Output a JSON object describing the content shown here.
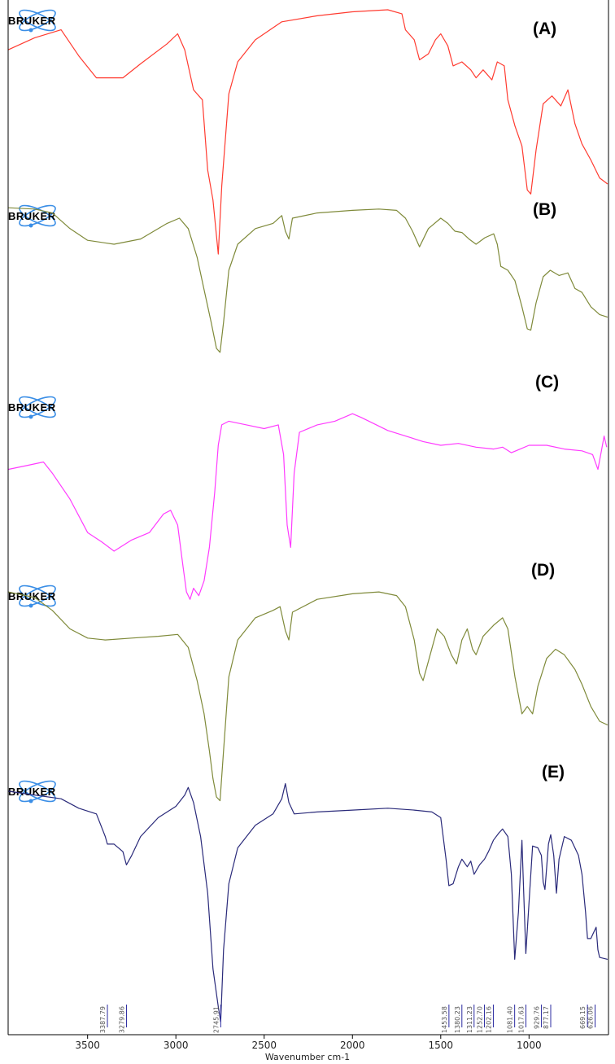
{
  "logo_text": "BRUKER",
  "chart_data": {
    "type": "line",
    "title": "",
    "xlabel": "Wavenumber cm-1",
    "ylabel": "",
    "x_reversed": true,
    "xlim": [
      3950,
      550
    ],
    "x_ticks": [
      3500,
      3000,
      2500,
      2000,
      1500,
      1000
    ],
    "grid": false,
    "series": [
      {
        "name": "(A)",
        "color": "#ff3b30",
        "points": [
          [
            3950,
            0.8
          ],
          [
            3800,
            0.86
          ],
          [
            3650,
            0.9
          ],
          [
            3550,
            0.77
          ],
          [
            3450,
            0.66
          ],
          [
            3300,
            0.66
          ],
          [
            3200,
            0.73
          ],
          [
            3050,
            0.83
          ],
          [
            2990,
            0.88
          ],
          [
            2950,
            0.8
          ],
          [
            2900,
            0.6
          ],
          [
            2850,
            0.55
          ],
          [
            2820,
            0.2
          ],
          [
            2790,
            0.05
          ],
          [
            2760,
            -0.22
          ],
          [
            2740,
            0.12
          ],
          [
            2700,
            0.58
          ],
          [
            2650,
            0.74
          ],
          [
            2550,
            0.85
          ],
          [
            2400,
            0.94
          ],
          [
            2200,
            0.97
          ],
          [
            2000,
            0.99
          ],
          [
            1800,
            1.0
          ],
          [
            1720,
            0.98
          ],
          [
            1700,
            0.9
          ],
          [
            1650,
            0.85
          ],
          [
            1620,
            0.75
          ],
          [
            1570,
            0.78
          ],
          [
            1530,
            0.85
          ],
          [
            1500,
            0.88
          ],
          [
            1460,
            0.82
          ],
          [
            1430,
            0.72
          ],
          [
            1380,
            0.74
          ],
          [
            1330,
            0.7
          ],
          [
            1300,
            0.66
          ],
          [
            1260,
            0.7
          ],
          [
            1210,
            0.65
          ],
          [
            1180,
            0.74
          ],
          [
            1140,
            0.72
          ],
          [
            1120,
            0.55
          ],
          [
            1080,
            0.42
          ],
          [
            1040,
            0.32
          ],
          [
            1010,
            0.1
          ],
          [
            990,
            0.08
          ],
          [
            960,
            0.3
          ],
          [
            920,
            0.53
          ],
          [
            870,
            0.57
          ],
          [
            820,
            0.52
          ],
          [
            780,
            0.6
          ],
          [
            740,
            0.43
          ],
          [
            700,
            0.33
          ],
          [
            650,
            0.25
          ],
          [
            600,
            0.16
          ],
          [
            555,
            0.13
          ]
        ]
      },
      {
        "name": "(B)",
        "color": "#7f8a3a",
        "points": [
          [
            3950,
            0.98
          ],
          [
            3800,
            0.97
          ],
          [
            3700,
            0.94
          ],
          [
            3600,
            0.82
          ],
          [
            3500,
            0.73
          ],
          [
            3350,
            0.7
          ],
          [
            3200,
            0.74
          ],
          [
            3050,
            0.86
          ],
          [
            2980,
            0.9
          ],
          [
            2930,
            0.82
          ],
          [
            2880,
            0.6
          ],
          [
            2840,
            0.35
          ],
          [
            2800,
            0.1
          ],
          [
            2770,
            -0.1
          ],
          [
            2750,
            -0.13
          ],
          [
            2730,
            0.1
          ],
          [
            2700,
            0.5
          ],
          [
            2650,
            0.7
          ],
          [
            2550,
            0.82
          ],
          [
            2450,
            0.86
          ],
          [
            2400,
            0.92
          ],
          [
            2380,
            0.8
          ],
          [
            2360,
            0.74
          ],
          [
            2340,
            0.9
          ],
          [
            2200,
            0.94
          ],
          [
            2000,
            0.96
          ],
          [
            1850,
            0.97
          ],
          [
            1750,
            0.96
          ],
          [
            1700,
            0.9
          ],
          [
            1660,
            0.8
          ],
          [
            1620,
            0.68
          ],
          [
            1570,
            0.82
          ],
          [
            1500,
            0.9
          ],
          [
            1460,
            0.86
          ],
          [
            1420,
            0.8
          ],
          [
            1380,
            0.79
          ],
          [
            1340,
            0.74
          ],
          [
            1300,
            0.7
          ],
          [
            1250,
            0.75
          ],
          [
            1200,
            0.78
          ],
          [
            1180,
            0.7
          ],
          [
            1160,
            0.53
          ],
          [
            1120,
            0.5
          ],
          [
            1080,
            0.42
          ],
          [
            1040,
            0.22
          ],
          [
            1010,
            0.05
          ],
          [
            990,
            0.04
          ],
          [
            960,
            0.25
          ],
          [
            920,
            0.45
          ],
          [
            880,
            0.5
          ],
          [
            830,
            0.46
          ],
          [
            780,
            0.48
          ],
          [
            740,
            0.36
          ],
          [
            700,
            0.33
          ],
          [
            650,
            0.22
          ],
          [
            600,
            0.16
          ],
          [
            555,
            0.14
          ]
        ]
      },
      {
        "name": "(C)",
        "color": "#ff3bff",
        "points": [
          [
            3950,
            0.62
          ],
          [
            3850,
            0.64
          ],
          [
            3750,
            0.66
          ],
          [
            3700,
            0.6
          ],
          [
            3600,
            0.46
          ],
          [
            3500,
            0.28
          ],
          [
            3420,
            0.23
          ],
          [
            3350,
            0.18
          ],
          [
            3250,
            0.24
          ],
          [
            3150,
            0.28
          ],
          [
            3070,
            0.38
          ],
          [
            3030,
            0.4
          ],
          [
            2990,
            0.32
          ],
          [
            2960,
            0.1
          ],
          [
            2940,
            -0.04
          ],
          [
            2920,
            -0.08
          ],
          [
            2900,
            -0.02
          ],
          [
            2870,
            -0.06
          ],
          [
            2840,
            0.02
          ],
          [
            2810,
            0.2
          ],
          [
            2780,
            0.5
          ],
          [
            2760,
            0.75
          ],
          [
            2740,
            0.86
          ],
          [
            2700,
            0.88
          ],
          [
            2600,
            0.86
          ],
          [
            2500,
            0.84
          ],
          [
            2420,
            0.86
          ],
          [
            2390,
            0.7
          ],
          [
            2370,
            0.32
          ],
          [
            2350,
            0.2
          ],
          [
            2330,
            0.6
          ],
          [
            2300,
            0.82
          ],
          [
            2200,
            0.86
          ],
          [
            2100,
            0.88
          ],
          [
            2000,
            0.92
          ],
          [
            1950,
            0.9
          ],
          [
            1800,
            0.83
          ],
          [
            1600,
            0.77
          ],
          [
            1500,
            0.75
          ],
          [
            1400,
            0.76
          ],
          [
            1300,
            0.74
          ],
          [
            1200,
            0.73
          ],
          [
            1150,
            0.74
          ],
          [
            1100,
            0.71
          ],
          [
            1050,
            0.73
          ],
          [
            1000,
            0.75
          ],
          [
            900,
            0.75
          ],
          [
            800,
            0.73
          ],
          [
            700,
            0.72
          ],
          [
            640,
            0.7
          ],
          [
            610,
            0.62
          ],
          [
            590,
            0.72
          ],
          [
            575,
            0.8
          ],
          [
            560,
            0.74
          ]
        ]
      },
      {
        "name": "(D)",
        "color": "#7f8a3a",
        "points": [
          [
            3950,
            0.96
          ],
          [
            3800,
            0.93
          ],
          [
            3700,
            0.86
          ],
          [
            3600,
            0.76
          ],
          [
            3500,
            0.71
          ],
          [
            3400,
            0.7
          ],
          [
            3250,
            0.71
          ],
          [
            3100,
            0.72
          ],
          [
            2990,
            0.73
          ],
          [
            2930,
            0.66
          ],
          [
            2880,
            0.48
          ],
          [
            2840,
            0.3
          ],
          [
            2810,
            0.1
          ],
          [
            2790,
            -0.05
          ],
          [
            2770,
            -0.15
          ],
          [
            2750,
            -0.17
          ],
          [
            2730,
            0.1
          ],
          [
            2700,
            0.5
          ],
          [
            2650,
            0.7
          ],
          [
            2550,
            0.82
          ],
          [
            2450,
            0.86
          ],
          [
            2410,
            0.88
          ],
          [
            2380,
            0.75
          ],
          [
            2360,
            0.7
          ],
          [
            2340,
            0.85
          ],
          [
            2200,
            0.92
          ],
          [
            2000,
            0.95
          ],
          [
            1850,
            0.96
          ],
          [
            1750,
            0.94
          ],
          [
            1700,
            0.88
          ],
          [
            1650,
            0.7
          ],
          [
            1620,
            0.52
          ],
          [
            1600,
            0.48
          ],
          [
            1560,
            0.62
          ],
          [
            1520,
            0.76
          ],
          [
            1480,
            0.72
          ],
          [
            1440,
            0.62
          ],
          [
            1410,
            0.57
          ],
          [
            1380,
            0.7
          ],
          [
            1350,
            0.76
          ],
          [
            1320,
            0.65
          ],
          [
            1300,
            0.62
          ],
          [
            1260,
            0.72
          ],
          [
            1200,
            0.78
          ],
          [
            1150,
            0.82
          ],
          [
            1120,
            0.76
          ],
          [
            1080,
            0.5
          ],
          [
            1040,
            0.3
          ],
          [
            1010,
            0.34
          ],
          [
            980,
            0.3
          ],
          [
            950,
            0.45
          ],
          [
            900,
            0.6
          ],
          [
            850,
            0.65
          ],
          [
            800,
            0.62
          ],
          [
            740,
            0.54
          ],
          [
            700,
            0.46
          ],
          [
            650,
            0.34
          ],
          [
            600,
            0.26
          ],
          [
            555,
            0.24
          ]
        ]
      },
      {
        "name": "(E)",
        "color": "#2a2a7a",
        "points": [
          [
            3950,
            0.94
          ],
          [
            3800,
            0.92
          ],
          [
            3650,
            0.9
          ],
          [
            3550,
            0.85
          ],
          [
            3450,
            0.82
          ],
          [
            3400,
            0.7
          ],
          [
            3388,
            0.66
          ],
          [
            3350,
            0.66
          ],
          [
            3300,
            0.62
          ],
          [
            3280,
            0.55
          ],
          [
            3250,
            0.6
          ],
          [
            3200,
            0.7
          ],
          [
            3100,
            0.8
          ],
          [
            3000,
            0.86
          ],
          [
            2950,
            0.92
          ],
          [
            2930,
            0.96
          ],
          [
            2900,
            0.88
          ],
          [
            2860,
            0.7
          ],
          [
            2820,
            0.4
          ],
          [
            2790,
            0.0
          ],
          [
            2760,
            -0.2
          ],
          [
            2746,
            -0.28
          ],
          [
            2730,
            0.1
          ],
          [
            2700,
            0.45
          ],
          [
            2650,
            0.64
          ],
          [
            2550,
            0.76
          ],
          [
            2450,
            0.82
          ],
          [
            2400,
            0.9
          ],
          [
            2380,
            0.98
          ],
          [
            2360,
            0.88
          ],
          [
            2330,
            0.82
          ],
          [
            2200,
            0.83
          ],
          [
            2000,
            0.84
          ],
          [
            1800,
            0.85
          ],
          [
            1650,
            0.84
          ],
          [
            1550,
            0.83
          ],
          [
            1500,
            0.8
          ],
          [
            1470,
            0.58
          ],
          [
            1454,
            0.44
          ],
          [
            1430,
            0.45
          ],
          [
            1400,
            0.54
          ],
          [
            1380,
            0.58
          ],
          [
            1350,
            0.54
          ],
          [
            1330,
            0.57
          ],
          [
            1311,
            0.5
          ],
          [
            1280,
            0.55
          ],
          [
            1252,
            0.58
          ],
          [
            1230,
            0.62
          ],
          [
            1202,
            0.68
          ],
          [
            1170,
            0.72
          ],
          [
            1150,
            0.74
          ],
          [
            1120,
            0.7
          ],
          [
            1100,
            0.5
          ],
          [
            1081,
            0.05
          ],
          [
            1060,
            0.3
          ],
          [
            1040,
            0.68
          ],
          [
            1030,
            0.4
          ],
          [
            1018,
            0.08
          ],
          [
            1000,
            0.35
          ],
          [
            980,
            0.65
          ],
          [
            950,
            0.64
          ],
          [
            930,
            0.6
          ],
          [
            920,
            0.46
          ],
          [
            910,
            0.42
          ],
          [
            890,
            0.66
          ],
          [
            877,
            0.71
          ],
          [
            860,
            0.6
          ],
          [
            845,
            0.4
          ],
          [
            830,
            0.58
          ],
          [
            800,
            0.7
          ],
          [
            760,
            0.68
          ],
          [
            720,
            0.6
          ],
          [
            700,
            0.5
          ],
          [
            680,
            0.3
          ],
          [
            669,
            0.16
          ],
          [
            650,
            0.16
          ],
          [
            630,
            0.2
          ],
          [
            620,
            0.22
          ],
          [
            610,
            0.1
          ],
          [
            600,
            0.06
          ],
          [
            555,
            0.05
          ]
        ]
      }
    ],
    "peak_labels": [
      {
        "x": 3387.79,
        "label": "3387.79"
      },
      {
        "x": 3279.86,
        "label": "3279.86"
      },
      {
        "x": 2745.91,
        "label": "2745.91"
      },
      {
        "x": 1453.58,
        "label": "1453.58"
      },
      {
        "x": 1380.23,
        "label": "1380.23"
      },
      {
        "x": 1311.23,
        "label": "1311.23"
      },
      {
        "x": 1252.7,
        "label": "1252.70"
      },
      {
        "x": 1202.16,
        "label": "1202.16"
      },
      {
        "x": 1081.4,
        "label": "1081.40"
      },
      {
        "x": 1017.63,
        "label": "1017.63"
      },
      {
        "x": 929.76,
        "label": "929.76"
      },
      {
        "x": 877.17,
        "label": "877.17"
      },
      {
        "x": 669.15,
        "label": "669.15"
      },
      {
        "x": 626.06,
        "label": "626.06"
      }
    ]
  }
}
